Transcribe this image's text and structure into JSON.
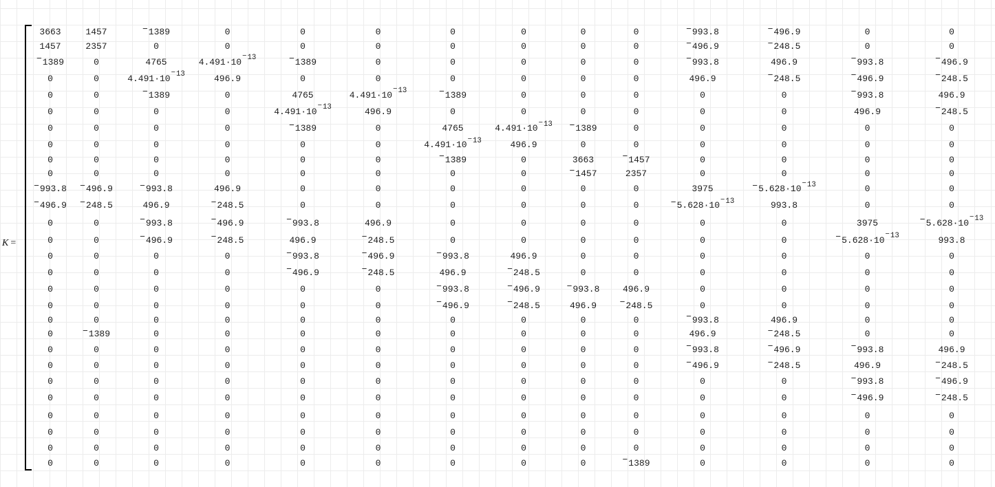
{
  "expression": {
    "variable": "K",
    "equals": "="
  },
  "matrix": {
    "rows": 28,
    "cols": 14,
    "values": [
      [
        "3663",
        "1457",
        "-1389",
        "0",
        "0",
        "0",
        "0",
        "0",
        "0",
        "0",
        "-993.8",
        "-496.9",
        "0",
        "0"
      ],
      [
        "1457",
        "2357",
        "0",
        "0",
        "0",
        "0",
        "0",
        "0",
        "0",
        "0",
        "-496.9",
        "-248.5",
        "0",
        "0"
      ],
      [
        "-1389",
        "0",
        "4765",
        "4.491·10^-13",
        "-1389",
        "0",
        "0",
        "0",
        "0",
        "0",
        "-993.8",
        "496.9",
        "-993.8",
        "-496.9"
      ],
      [
        "0",
        "0",
        "4.491·10^-13",
        "496.9",
        "0",
        "0",
        "0",
        "0",
        "0",
        "0",
        "496.9",
        "-248.5",
        "-496.9",
        "-248.5"
      ],
      [
        "0",
        "0",
        "-1389",
        "0",
        "4765",
        "4.491·10^-13",
        "-1389",
        "0",
        "0",
        "0",
        "0",
        "0",
        "-993.8",
        "496.9"
      ],
      [
        "0",
        "0",
        "0",
        "0",
        "4.491·10^-13",
        "496.9",
        "0",
        "0",
        "0",
        "0",
        "0",
        "0",
        "496.9",
        "-248.5"
      ],
      [
        "0",
        "0",
        "0",
        "0",
        "-1389",
        "0",
        "4765",
        "4.491·10^-13",
        "-1389",
        "0",
        "0",
        "0",
        "0",
        "0"
      ],
      [
        "0",
        "0",
        "0",
        "0",
        "0",
        "0",
        "4.491·10^-13",
        "496.9",
        "0",
        "0",
        "0",
        "0",
        "0",
        "0"
      ],
      [
        "0",
        "0",
        "0",
        "0",
        "0",
        "0",
        "-1389",
        "0",
        "3663",
        "-1457",
        "0",
        "0",
        "0",
        "0"
      ],
      [
        "0",
        "0",
        "0",
        "0",
        "0",
        "0",
        "0",
        "0",
        "-1457",
        "2357",
        "0",
        "0",
        "0",
        "0"
      ],
      [
        "-993.8",
        "-496.9",
        "-993.8",
        "496.9",
        "0",
        "0",
        "0",
        "0",
        "0",
        "0",
        "3975",
        "-5.628·10^-13",
        "0",
        "0"
      ],
      [
        "-496.9",
        "-248.5",
        "496.9",
        "-248.5",
        "0",
        "0",
        "0",
        "0",
        "0",
        "0",
        "-5.628·10^-13",
        "993.8",
        "0",
        "0"
      ],
      [
        "0",
        "0",
        "-993.8",
        "-496.9",
        "-993.8",
        "496.9",
        "0",
        "0",
        "0",
        "0",
        "0",
        "0",
        "3975",
        "-5.628·10^-13"
      ],
      [
        "0",
        "0",
        "-496.9",
        "-248.5",
        "496.9",
        "-248.5",
        "0",
        "0",
        "0",
        "0",
        "0",
        "0",
        "-5.628·10^-13",
        "993.8"
      ],
      [
        "0",
        "0",
        "0",
        "0",
        "-993.8",
        "-496.9",
        "-993.8",
        "496.9",
        "0",
        "0",
        "0",
        "0",
        "0",
        "0"
      ],
      [
        "0",
        "0",
        "0",
        "0",
        "-496.9",
        "-248.5",
        "496.9",
        "-248.5",
        "0",
        "0",
        "0",
        "0",
        "0",
        "0"
      ],
      [
        "0",
        "0",
        "0",
        "0",
        "0",
        "0",
        "-993.8",
        "-496.9",
        "-993.8",
        "496.9",
        "0",
        "0",
        "0",
        "0"
      ],
      [
        "0",
        "0",
        "0",
        "0",
        "0",
        "0",
        "-496.9",
        "-248.5",
        "496.9",
        "-248.5",
        "0",
        "0",
        "0",
        "0"
      ],
      [
        "0",
        "0",
        "0",
        "0",
        "0",
        "0",
        "0",
        "0",
        "0",
        "0",
        "-993.8",
        "496.9",
        "0",
        "0"
      ],
      [
        "0",
        "-1389",
        "0",
        "0",
        "0",
        "0",
        "0",
        "0",
        "0",
        "0",
        "496.9",
        "-248.5",
        "0",
        "0"
      ],
      [
        "0",
        "0",
        "0",
        "0",
        "0",
        "0",
        "0",
        "0",
        "0",
        "0",
        "-993.8",
        "-496.9",
        "-993.8",
        "496.9"
      ],
      [
        "0",
        "0",
        "0",
        "0",
        "0",
        "0",
        "0",
        "0",
        "0",
        "0",
        "-496.9",
        "-248.5",
        "496.9",
        "-248.5"
      ],
      [
        "0",
        "0",
        "0",
        "0",
        "0",
        "0",
        "0",
        "0",
        "0",
        "0",
        "0",
        "0",
        "-993.8",
        "-496.9"
      ],
      [
        "0",
        "0",
        "0",
        "0",
        "0",
        "0",
        "0",
        "0",
        "0",
        "0",
        "0",
        "0",
        "-496.9",
        "-248.5"
      ],
      [
        "0",
        "0",
        "0",
        "0",
        "0",
        "0",
        "0",
        "0",
        "0",
        "0",
        "0",
        "0",
        "0",
        "0"
      ],
      [
        "0",
        "0",
        "0",
        "0",
        "0",
        "0",
        "0",
        "0",
        "0",
        "0",
        "0",
        "0",
        "0",
        "0"
      ],
      [
        "0",
        "0",
        "0",
        "0",
        "0",
        "0",
        "0",
        "0",
        "0",
        "0",
        "0",
        "0",
        "0",
        "0"
      ],
      [
        "0",
        "0",
        "0",
        "0",
        "0",
        "0",
        "0",
        "0",
        "0",
        "-1389",
        "0",
        "0",
        "0",
        "0"
      ]
    ]
  },
  "colors": {
    "background": "#ffffff",
    "grid_line": "#ececec",
    "text": "#1c1c1c",
    "bracket": "#000000"
  }
}
